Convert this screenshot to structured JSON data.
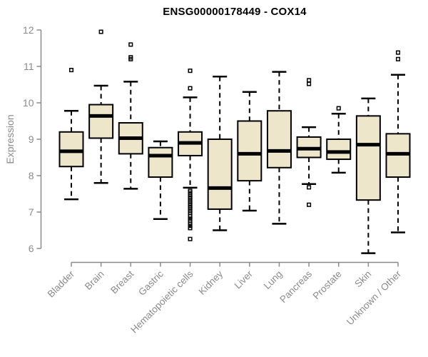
{
  "title": "ENSG00000178449 - COX14",
  "colors": {
    "background": "#ffffff",
    "box_fill": "#ede6ca",
    "box_stroke": "#000000",
    "median": "#000000",
    "whisker": "#000000",
    "outlier": "#000000",
    "axis": "#8a8a8a",
    "tick_label": "#8a8a8a",
    "title_text": "#000000"
  },
  "chart_data": {
    "type": "boxplot",
    "title": "ENSG00000178449 - COX14",
    "xlabel": "",
    "ylabel": "Expression",
    "ylim": [
      6,
      12
    ],
    "yticks": [
      6,
      7,
      8,
      9,
      10,
      11,
      12
    ],
    "grid": false,
    "legend": false,
    "x_tick_rotation": 45,
    "categories": [
      "Bladder",
      "Brain",
      "Breast",
      "Gastric",
      "Hematopoietic cells",
      "Kidney",
      "Liver",
      "Lung",
      "Pancreas",
      "Prostate",
      "Skin",
      "Unknown / Other"
    ],
    "series": [
      {
        "name": "Bladder",
        "whisker_low": 7.35,
        "q1": 8.25,
        "median": 8.67,
        "q3": 9.2,
        "whisker_high": 9.78,
        "outliers": [
          10.9
        ]
      },
      {
        "name": "Brain",
        "whisker_low": 7.8,
        "q1": 9.03,
        "median": 9.64,
        "q3": 9.95,
        "whisker_high": 10.47,
        "outliers": [
          11.95
        ]
      },
      {
        "name": "Breast",
        "whisker_low": 7.64,
        "q1": 8.6,
        "median": 9.03,
        "q3": 9.45,
        "whisker_high": 10.58,
        "outliers": [
          11.6,
          11.25,
          11.2
        ]
      },
      {
        "name": "Gastric",
        "whisker_low": 6.81,
        "q1": 7.96,
        "median": 8.55,
        "q3": 8.77,
        "whisker_high": 8.94,
        "outliers": []
      },
      {
        "name": "Hematopoietic cells",
        "whisker_low": 7.67,
        "q1": 8.55,
        "median": 8.9,
        "q3": 9.2,
        "whisker_high": 10.15,
        "outliers": [
          10.88,
          10.4,
          7.58,
          7.53,
          7.48,
          7.43,
          7.38,
          7.33,
          7.28,
          7.23,
          7.18,
          7.13,
          7.08,
          7.03,
          6.98,
          6.88,
          6.82,
          6.76,
          6.68,
          6.62,
          6.56,
          6.26
        ]
      },
      {
        "name": "Kidney",
        "whisker_low": 6.5,
        "q1": 7.08,
        "median": 7.66,
        "q3": 9.0,
        "whisker_high": 10.72,
        "outliers": []
      },
      {
        "name": "Liver",
        "whisker_low": 7.04,
        "q1": 7.86,
        "median": 8.6,
        "q3": 9.5,
        "whisker_high": 10.3,
        "outliers": []
      },
      {
        "name": "Lung",
        "whisker_low": 6.68,
        "q1": 8.22,
        "median": 8.68,
        "q3": 9.78,
        "whisker_high": 10.85,
        "outliers": []
      },
      {
        "name": "Pancreas",
        "whisker_low": 7.77,
        "q1": 8.5,
        "median": 8.74,
        "q3": 9.06,
        "whisker_high": 9.33,
        "outliers": [
          10.62,
          10.52,
          7.68,
          7.2
        ]
      },
      {
        "name": "Prostate",
        "whisker_low": 8.08,
        "q1": 8.45,
        "median": 8.65,
        "q3": 9.0,
        "whisker_high": 9.7,
        "outliers": [
          9.85
        ]
      },
      {
        "name": "Skin",
        "whisker_low": 5.87,
        "q1": 7.33,
        "median": 8.85,
        "q3": 9.64,
        "whisker_high": 10.12,
        "outliers": []
      },
      {
        "name": "Unknown / Other",
        "whisker_low": 6.44,
        "q1": 7.96,
        "median": 8.6,
        "q3": 9.15,
        "whisker_high": 10.77,
        "outliers": [
          11.38,
          11.2
        ]
      }
    ]
  }
}
